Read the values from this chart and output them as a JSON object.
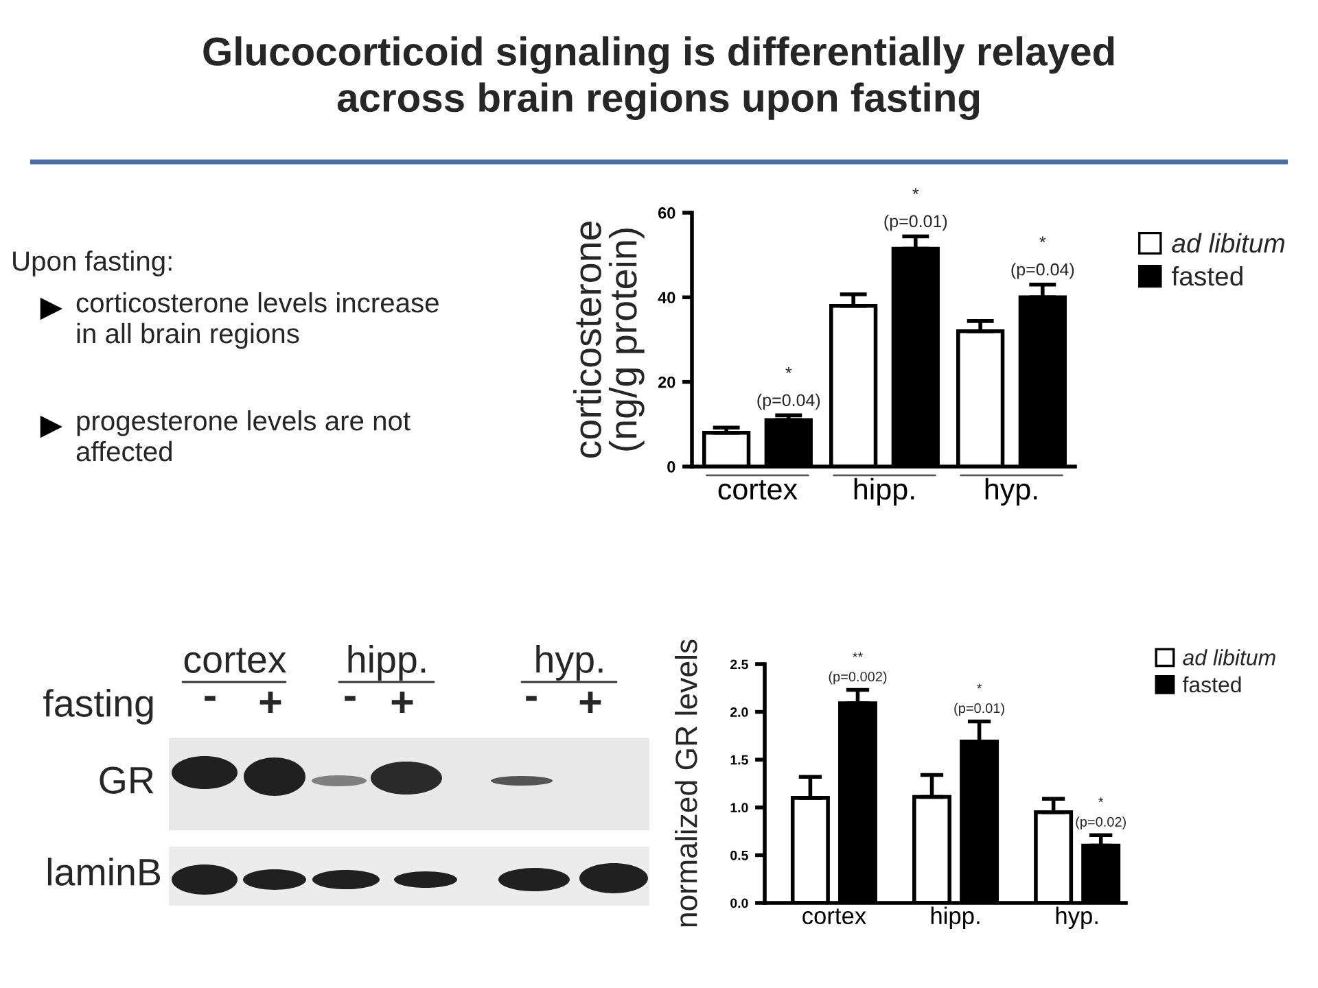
{
  "chart_data": [
    {
      "type": "other",
      "title": "Glucocorticoid signaling is differentially relayed\nacross brain regions upon fasting",
      "annotations": [
        "Upon fasting:",
        "corticosterone levels increase\nin all brain regions",
        "progesterone levels are not\naffected"
      ]
    },
    {
      "type": "bar",
      "ylabel": "corticosterone\n(ng/g protein)",
      "categories": [
        "cortex",
        "hipp.",
        "hyp."
      ],
      "series": [
        {
          "name": "ad libitum",
          "color": "#ffffff",
          "values": [
            8,
            38,
            32
          ],
          "errors": [
            [
              8,
              9.2
            ],
            [
              38,
              40.7
            ],
            [
              32,
              34.4
            ]
          ]
        },
        {
          "name": "fasted",
          "color": "#000000",
          "values": [
            11,
            51.5,
            40
          ],
          "errors": [
            [
              11,
              12.1
            ],
            [
              51.5,
              54.4
            ],
            [
              40,
              43
            ]
          ]
        }
      ],
      "ylim": [
        0,
        60
      ],
      "yticks": [
        0,
        20,
        40,
        60
      ],
      "grid": false,
      "legend": "top right",
      "annotations": [
        "*\n(p=0.04)",
        "*\n(p=0.01)",
        "*\n(p=0.04)"
      ]
    },
    {
      "type": "other",
      "annotations": [
        "cortex",
        "hipp.",
        "hyp.",
        "fasting",
        "-",
        "+",
        "-",
        "+",
        "-",
        "+",
        "GR",
        "laminB"
      ]
    },
    {
      "type": "bar",
      "ylabel": "normalized GR levels",
      "categories": [
        "cortex",
        "hipp.",
        "hyp."
      ],
      "series": [
        {
          "name": "ad libitum",
          "color": "#ffffff",
          "values": [
            1.1,
            1.11,
            0.95
          ],
          "errors": [
            [
              1.1,
              1.32
            ],
            [
              1.11,
              1.34
            ],
            [
              0.95,
              1.09
            ]
          ]
        },
        {
          "name": "fasted",
          "color": "#000000",
          "values": [
            2.09,
            1.69,
            0.6
          ],
          "errors": [
            [
              2.09,
              2.23
            ],
            [
              1.69,
              1.9
            ],
            [
              0.6,
              0.71
            ]
          ]
        }
      ],
      "ylim": [
        0,
        2.5
      ],
      "yticks": [
        {
          "value": 0,
          "label": "0.0"
        },
        {
          "value": 0.5,
          "label": "0.5"
        },
        {
          "value": 1,
          "label": "1.0"
        },
        {
          "value": 1.5,
          "label": "1.5"
        },
        {
          "value": 2,
          "label": "2.0"
        },
        {
          "value": 2.5,
          "label": "2.5"
        }
      ],
      "grid": false,
      "legend": "top right",
      "annotations": [
        "**\n(p=0.002)",
        "*\n(p=0.01)",
        "*\n(p=0.02)"
      ]
    }
  ]
}
